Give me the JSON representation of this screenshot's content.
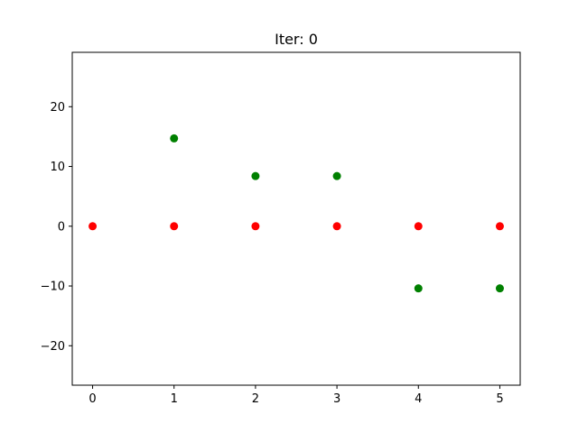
{
  "chart_data": {
    "type": "scatter",
    "title": "Iter: 0",
    "xlabel": "",
    "ylabel": "",
    "xlim": [
      -0.25,
      5.25
    ],
    "ylim": [
      -26.6,
      29.1
    ],
    "xticks": [
      0,
      1,
      2,
      3,
      4,
      5
    ],
    "xtick_labels": [
      "0",
      "1",
      "2",
      "3",
      "4",
      "5"
    ],
    "yticks": [
      -20,
      -10,
      0,
      10,
      20
    ],
    "ytick_labels": [
      "−20",
      "−10",
      "0",
      "10",
      "20"
    ],
    "grid": false,
    "series": [
      {
        "color": "#ff0000",
        "x": [
          0,
          1,
          2,
          3,
          4,
          5
        ],
        "y": [
          0,
          0,
          0,
          0,
          0,
          0
        ]
      },
      {
        "color": "#008000",
        "x": [
          1,
          2,
          3,
          4,
          5
        ],
        "y": [
          14.7,
          8.4,
          8.4,
          -10.4,
          -10.4
        ]
      }
    ]
  }
}
